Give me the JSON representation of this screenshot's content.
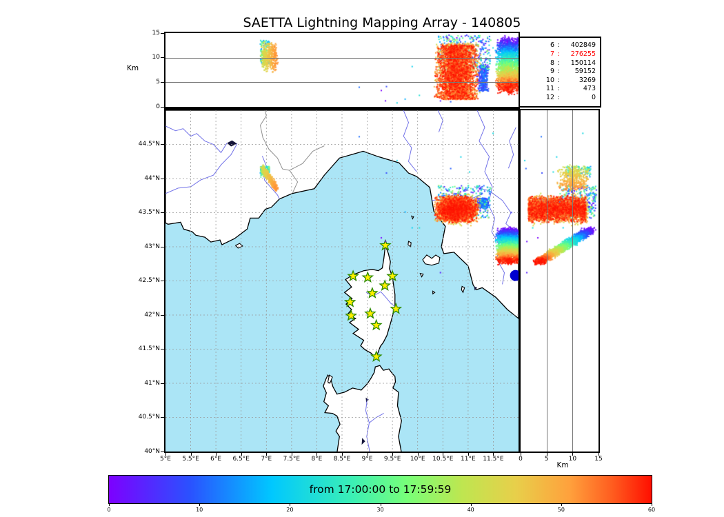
{
  "title": "SAETTA Lightning Mapping Array - 140805",
  "panels": {
    "top": {
      "ylabel": "Km",
      "ylim": [
        0,
        15
      ],
      "yticks": [
        "0",
        "5",
        "10",
        "15"
      ],
      "gridlines_km": [
        5,
        10
      ]
    },
    "map": {
      "lon_lim": [
        5,
        12
      ],
      "lat_lim": [
        40,
        45
      ],
      "xticks": [
        "5°E",
        "5.5°E",
        "6°E",
        "6.5°E",
        "7°E",
        "7.5°E",
        "8°E",
        "8.5°E",
        "9°E",
        "9.5°E",
        "10°E",
        "10.5°E",
        "11°E",
        "11.5°E"
      ],
      "yticks": [
        "40°N",
        "40.5°N",
        "41°N",
        "41.5°N",
        "42°N",
        "42.5°N",
        "43°N",
        "43.5°N",
        "44°N",
        "44.5°N"
      ],
      "grid_step_deg": 0.5
    },
    "right": {
      "xlabel": "Km",
      "xlim": [
        0,
        15
      ],
      "xticks": [
        "0",
        "5",
        "10",
        "15"
      ],
      "gridlines_km": [
        5,
        10
      ]
    }
  },
  "legend": {
    "rows": [
      [
        "6",
        "402849"
      ],
      [
        "7",
        "276255"
      ],
      [
        "8",
        "150114"
      ],
      [
        "9",
        "59152"
      ],
      [
        "10",
        "3269"
      ],
      [
        "11",
        "473"
      ],
      [
        "12",
        "0"
      ]
    ],
    "highlight_row": 1,
    "highlight_color": "#ff0000"
  },
  "colorbar": {
    "label": "from 17:00:00 to 17:59:59",
    "ticks": [
      "0",
      "10",
      "20",
      "30",
      "40",
      "50",
      "60"
    ],
    "lim": [
      0,
      60
    ],
    "stops": [
      [
        0,
        "#7d00ff"
      ],
      [
        0.15,
        "#2a52ff"
      ],
      [
        0.3,
        "#00c8ff"
      ],
      [
        0.45,
        "#3cf0b4"
      ],
      [
        0.55,
        "#78ff78"
      ],
      [
        0.65,
        "#bee650"
      ],
      [
        0.75,
        "#e8cf4a"
      ],
      [
        0.85,
        "#ffa03c"
      ],
      [
        0.93,
        "#ff5a1e"
      ],
      [
        1,
        "#ff0f00"
      ]
    ]
  },
  "map_colors": {
    "sea": "#abe5f6",
    "land": "#ffffff",
    "coast": "#000000",
    "river": "#7272e8",
    "border": "#909090",
    "grid": "#999999",
    "lake": "#15153a",
    "star_fill": "#ffee00",
    "star_stroke": "#2e8b00",
    "dot": "#0000d0"
  },
  "chart_data": {
    "type": "scatter",
    "title": "SAETTA Lightning Mapping Array - 140805",
    "date_code": "140805",
    "time_window": {
      "from": "17:00:00",
      "to": "17:59:59"
    },
    "color_encoding": "minutes after 17:00:00 (0-60), rainbow colormap",
    "counts_by_altitude_km": {
      "6": 402849,
      "7": 276255,
      "8": 150114,
      "9": 59152,
      "10": 3269,
      "11": 473,
      "12": 0
    },
    "stations_lonlat": [
      [
        9.36,
        43.02
      ],
      [
        8.72,
        42.57
      ],
      [
        9.01,
        42.55
      ],
      [
        9.5,
        42.57
      ],
      [
        9.35,
        42.43
      ],
      [
        9.1,
        42.32
      ],
      [
        8.66,
        42.19
      ],
      [
        9.57,
        42.09
      ],
      [
        8.68,
        41.99
      ],
      [
        9.06,
        42.02
      ],
      [
        9.18,
        41.85
      ],
      [
        9.18,
        41.39
      ]
    ],
    "marker_dot": {
      "lon": 11.94,
      "lat": 42.58,
      "radius_px": 8
    },
    "clusters": [
      {
        "name": "west-storm-early-fringe",
        "model": "box",
        "n": 90,
        "lon": [
          6.88,
          7.06
        ],
        "lat": [
          44.02,
          44.18
        ],
        "alt": [
          8.5,
          13.5
        ],
        "t": [
          10,
          36
        ]
      },
      {
        "name": "west-storm",
        "model": "drift",
        "n": 430,
        "t": [
          41,
          52
        ],
        "lon": {
          "base": 5.9,
          "perT": 0.025,
          "jit": 0.05
        },
        "lat": {
          "base": 45.21,
          "perT": -0.026,
          "jit": 0.07
        },
        "alt": {
          "base": 10.2,
          "perT": 0,
          "jit": 3.3,
          "clipMin": 6.8
        }
      },
      {
        "name": "main-storm-early-specks",
        "model": "box",
        "n": 260,
        "lon": [
          10.4,
          11.45
        ],
        "lat": [
          43.42,
          43.9
        ],
        "alt": [
          7.5,
          14.5
        ],
        "t": [
          6,
          38
        ]
      },
      {
        "name": "main-storm-purple-specks",
        "model": "box",
        "n": 110,
        "lon": [
          10.5,
          11.4
        ],
        "lat": [
          43.5,
          43.88
        ],
        "alt": [
          9,
          14.6
        ],
        "t": [
          0,
          9
        ]
      },
      {
        "name": "main-storm-blue-patch",
        "model": "box",
        "n": 300,
        "lon": [
          11.17,
          11.42
        ],
        "lat": [
          43.55,
          43.72
        ],
        "alt": [
          3.2,
          8.6
        ],
        "t": [
          2,
          13
        ],
        "bias": "center"
      },
      {
        "name": "main-storm-orange-fringe",
        "model": "box",
        "n": 520,
        "lon": [
          10.3,
          11.28
        ],
        "lat": [
          43.3,
          43.8
        ],
        "alt": [
          1.8,
          13
        ],
        "t": [
          40,
          51
        ],
        "bias": "center"
      },
      {
        "name": "main-storm-red-core",
        "model": "box",
        "n": 3100,
        "lon": [
          10.33,
          11.22
        ],
        "lat": [
          43.34,
          43.76
        ],
        "alt": [
          1.5,
          12.6
        ],
        "t": [
          49,
          60
        ],
        "bias": "center"
      },
      {
        "name": "east-storm-layered",
        "model": "drift",
        "n": 2500,
        "t": [
          0,
          60
        ],
        "lon": {
          "base": 11.8,
          "perT": 0,
          "jit": 0.26,
          "clip": [
            11.5,
            11.99
          ]
        },
        "lat": {
          "base": 43.245,
          "perT": -0.0077,
          "jit": 0.05
        },
        "alt": {
          "base": 13.4,
          "perT": -0.163,
          "jit": 1.3,
          "clipMin": 0.4
        }
      },
      {
        "name": "stray-specks",
        "model": "box",
        "n": 14,
        "lon": [
          8.4,
          11.9
        ],
        "lat": [
          42.3,
          44.75
        ],
        "alt": [
          0.5,
          12.5
        ],
        "t": [
          0,
          25
        ]
      }
    ]
  },
  "map_features": {
    "mainland": [
      [
        5,
        45
      ],
      [
        12,
        45
      ],
      [
        12,
        41.95
      ],
      [
        11.78,
        42.08
      ],
      [
        11.55,
        42.26
      ],
      [
        11.28,
        42.4
      ],
      [
        11.16,
        42.37
      ],
      [
        11.1,
        42.44
      ],
      [
        11.0,
        42.72
      ],
      [
        10.72,
        42.92
      ],
      [
        10.52,
        42.9
      ],
      [
        10.47,
        43.0
      ],
      [
        10.55,
        43.3
      ],
      [
        10.32,
        43.52
      ],
      [
        10.28,
        43.7
      ],
      [
        10.24,
        43.87
      ],
      [
        9.98,
        44.03
      ],
      [
        9.82,
        44.08
      ],
      [
        9.63,
        44.23
      ],
      [
        9.22,
        44.32
      ],
      [
        8.92,
        44.4
      ],
      [
        8.45,
        44.3
      ],
      [
        8.15,
        44.05
      ],
      [
        7.95,
        43.85
      ],
      [
        7.51,
        43.78
      ],
      [
        7.26,
        43.7
      ],
      [
        7.1,
        43.58
      ],
      [
        6.98,
        43.55
      ],
      [
        6.85,
        43.42
      ],
      [
        6.68,
        43.42
      ],
      [
        6.62,
        43.26
      ],
      [
        6.37,
        43.12
      ],
      [
        6.12,
        43.03
      ],
      [
        6.08,
        43.1
      ],
      [
        5.9,
        43.07
      ],
      [
        5.78,
        43.14
      ],
      [
        5.6,
        43.17
      ],
      [
        5.53,
        43.22
      ],
      [
        5.36,
        43.26
      ],
      [
        5.3,
        43.36
      ],
      [
        5.05,
        43.33
      ],
      [
        5,
        43.35
      ]
    ],
    "corsica": [
      [
        9.36,
        43.02
      ],
      [
        9.42,
        42.9
      ],
      [
        9.46,
        42.78
      ],
      [
        9.44,
        42.68
      ],
      [
        9.5,
        42.56
      ],
      [
        9.55,
        42.3
      ],
      [
        9.55,
        42.12
      ],
      [
        9.47,
        41.9
      ],
      [
        9.39,
        41.7
      ],
      [
        9.32,
        41.6
      ],
      [
        9.26,
        41.54
      ],
      [
        9.21,
        41.44
      ],
      [
        9.15,
        41.38
      ],
      [
        9.08,
        41.44
      ],
      [
        8.96,
        41.49
      ],
      [
        8.87,
        41.55
      ],
      [
        8.93,
        41.63
      ],
      [
        8.72,
        41.73
      ],
      [
        8.83,
        41.79
      ],
      [
        8.65,
        41.89
      ],
      [
        8.77,
        41.95
      ],
      [
        8.6,
        42.0
      ],
      [
        8.69,
        42.08
      ],
      [
        8.58,
        42.16
      ],
      [
        8.7,
        42.24
      ],
      [
        8.55,
        42.33
      ],
      [
        8.69,
        42.41
      ],
      [
        8.57,
        42.52
      ],
      [
        8.72,
        42.59
      ],
      [
        8.93,
        42.65
      ],
      [
        9.1,
        42.67
      ],
      [
        9.22,
        42.65
      ],
      [
        9.3,
        42.69
      ],
      [
        9.33,
        42.83
      ]
    ],
    "sardinia": [
      [
        8.4,
        39.98
      ],
      [
        8.45,
        40.22
      ],
      [
        8.38,
        40.3
      ],
      [
        8.46,
        40.4
      ],
      [
        8.4,
        40.52
      ],
      [
        8.31,
        40.56
      ],
      [
        8.16,
        40.57
      ],
      [
        8.23,
        40.67
      ],
      [
        8.14,
        40.73
      ],
      [
        8.19,
        40.86
      ],
      [
        8.13,
        40.96
      ],
      [
        8.18,
        41.06
      ],
      [
        8.22,
        41.12
      ],
      [
        8.28,
        41.06
      ],
      [
        8.32,
        40.95
      ],
      [
        8.4,
        40.84
      ],
      [
        8.55,
        40.87
      ],
      [
        8.71,
        40.93
      ],
      [
        8.88,
        40.9
      ],
      [
        9.0,
        40.99
      ],
      [
        9.08,
        41.08
      ],
      [
        9.14,
        41.16
      ],
      [
        9.16,
        41.24
      ],
      [
        9.25,
        41.26
      ],
      [
        9.32,
        41.19
      ],
      [
        9.43,
        41.21
      ],
      [
        9.5,
        41.14
      ],
      [
        9.55,
        41.1
      ],
      [
        9.56,
        41.02
      ],
      [
        9.51,
        40.93
      ],
      [
        9.62,
        40.87
      ],
      [
        9.6,
        40.67
      ],
      [
        9.68,
        40.45
      ],
      [
        9.62,
        40.22
      ],
      [
        9.68,
        39.98
      ]
    ],
    "islands": [
      [
        [
          10.1,
          42.81
        ],
        [
          10.18,
          42.88
        ],
        [
          10.28,
          42.83
        ],
        [
          10.36,
          42.88
        ],
        [
          10.44,
          42.84
        ],
        [
          10.42,
          42.76
        ],
        [
          10.28,
          42.73
        ],
        [
          10.15,
          42.75
        ]
      ],
      [
        [
          9.82,
          43.08
        ],
        [
          9.87,
          43.06
        ],
        [
          9.86,
          43.0
        ],
        [
          9.81,
          43.03
        ]
      ],
      [
        [
          9.88,
          43.45
        ],
        [
          9.92,
          43.44
        ],
        [
          9.9,
          43.41
        ]
      ],
      [
        [
          10.05,
          42.61
        ],
        [
          10.11,
          42.6
        ],
        [
          10.08,
          42.56
        ]
      ],
      [
        [
          10.3,
          42.35
        ],
        [
          10.34,
          42.33
        ],
        [
          10.3,
          42.31
        ]
      ],
      [
        [
          10.88,
          42.42
        ],
        [
          10.93,
          42.4
        ],
        [
          10.9,
          42.33
        ],
        [
          10.87,
          42.37
        ]
      ],
      [
        [
          8.22,
          41.02
        ],
        [
          8.25,
          41.12
        ],
        [
          8.31,
          41.09
        ],
        [
          8.26,
          41.0
        ]
      ],
      [
        [
          6.39,
          43.02
        ],
        [
          6.47,
          43.05
        ],
        [
          6.53,
          43.01
        ],
        [
          6.44,
          42.98
        ]
      ]
    ],
    "lakes": [
      [
        [
          6.22,
          44.52
        ],
        [
          6.32,
          44.56
        ],
        [
          6.42,
          44.51
        ],
        [
          6.3,
          44.47
        ]
      ],
      [
        [
          8.97,
          40.79
        ],
        [
          9.03,
          40.76
        ],
        [
          8.98,
          40.72
        ]
      ],
      [
        [
          8.9,
          40.2
        ],
        [
          8.96,
          40.15
        ],
        [
          8.89,
          40.1
        ]
      ],
      [
        [
          11.12,
          42.42
        ],
        [
          11.18,
          42.4
        ],
        [
          11.13,
          42.36
        ]
      ]
    ],
    "rivers": [
      [
        [
          5.0,
          44.77
        ],
        [
          5.2,
          44.7
        ],
        [
          5.35,
          44.73
        ],
        [
          5.5,
          44.62
        ],
        [
          5.62,
          44.66
        ],
        [
          5.78,
          44.55
        ],
        [
          5.95,
          44.5
        ],
        [
          6.1,
          44.38
        ],
        [
          6.22,
          44.52
        ]
      ],
      [
        [
          6.42,
          44.51
        ],
        [
          6.3,
          44.35
        ],
        [
          6.1,
          44.2
        ],
        [
          5.95,
          44.05
        ],
        [
          5.7,
          43.98
        ],
        [
          5.5,
          43.88
        ],
        [
          5.25,
          43.86
        ],
        [
          5.0,
          43.78
        ]
      ],
      [
        [
          6.92,
          44.33
        ],
        [
          7.02,
          44.15
        ],
        [
          6.96,
          43.98
        ],
        [
          7.1,
          43.86
        ],
        [
          7.22,
          43.76
        ],
        [
          7.26,
          43.7
        ]
      ],
      [
        [
          9.72,
          45.0
        ],
        [
          9.82,
          44.82
        ],
        [
          9.72,
          44.62
        ],
        [
          9.88,
          44.45
        ],
        [
          9.82,
          44.25
        ],
        [
          9.98,
          44.1
        ]
      ],
      [
        [
          11.3,
          43.78
        ],
        [
          11.05,
          43.7
        ],
        [
          10.78,
          43.78
        ],
        [
          10.5,
          43.7
        ],
        [
          10.29,
          43.68
        ]
      ],
      [
        [
          11.18,
          45.0
        ],
        [
          11.33,
          44.75
        ],
        [
          11.22,
          44.55
        ],
        [
          11.42,
          44.32
        ],
        [
          11.33,
          44.1
        ],
        [
          11.48,
          43.88
        ],
        [
          11.4,
          43.62
        ],
        [
          11.53,
          43.42
        ],
        [
          11.47,
          43.22
        ],
        [
          11.62,
          43.02
        ],
        [
          11.57,
          42.82
        ],
        [
          11.72,
          42.62
        ],
        [
          11.68,
          42.45
        ]
      ],
      [
        [
          11.12,
          43.88
        ],
        [
          11.42,
          43.82
        ],
        [
          11.68,
          43.68
        ],
        [
          11.85,
          43.5
        ],
        [
          11.75,
          43.34
        ],
        [
          11.95,
          43.2
        ]
      ],
      [
        [
          8.98,
          42.33
        ],
        [
          9.12,
          42.28
        ],
        [
          9.27,
          42.34
        ],
        [
          9.38,
          42.25
        ],
        [
          9.47,
          42.17
        ],
        [
          9.56,
          42.12
        ]
      ],
      [
        [
          9.0,
          40.77
        ],
        [
          8.97,
          40.6
        ],
        [
          9.04,
          40.42
        ],
        [
          8.99,
          40.22
        ],
        [
          9.05,
          40.0
        ]
      ],
      [
        [
          9.04,
          40.42
        ],
        [
          9.18,
          40.5
        ],
        [
          9.33,
          40.56
        ]
      ],
      [
        [
          10.4,
          45.0
        ],
        [
          10.5,
          44.85
        ],
        [
          10.42,
          44.68
        ]
      ],
      [
        [
          11.95,
          44.75
        ],
        [
          11.82,
          44.55
        ],
        [
          11.9,
          44.35
        ],
        [
          11.8,
          44.15
        ]
      ]
    ],
    "borders": [
      [
        [
          7.52,
          43.79
        ],
        [
          7.62,
          43.95
        ],
        [
          7.46,
          44.12
        ],
        [
          7.32,
          44.14
        ],
        [
          7.22,
          44.3
        ],
        [
          7.05,
          44.43
        ],
        [
          6.93,
          44.6
        ],
        [
          6.88,
          44.78
        ],
        [
          7.0,
          44.92
        ],
        [
          6.97,
          45.0
        ]
      ],
      [
        [
          7.46,
          44.12
        ],
        [
          7.72,
          44.22
        ],
        [
          7.92,
          44.4
        ],
        [
          8.15,
          44.48
        ]
      ]
    ]
  }
}
